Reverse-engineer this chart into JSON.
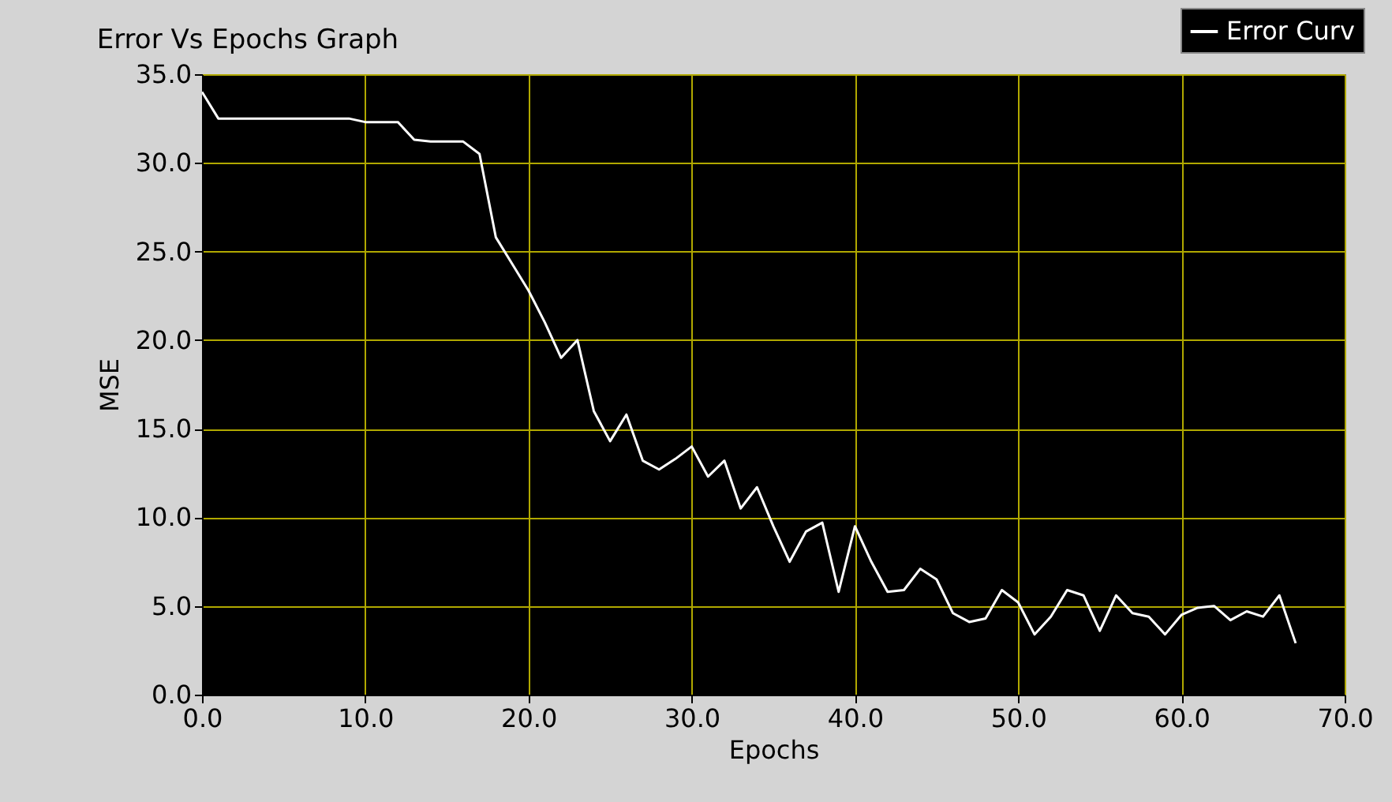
{
  "chart_data": {
    "type": "line",
    "title": "Error Vs Epochs Graph",
    "xlabel": "Epochs",
    "ylabel": "MSE",
    "x": [
      0,
      1,
      2,
      3,
      4,
      5,
      6,
      7,
      8,
      9,
      10,
      11,
      12,
      13,
      14,
      15,
      16,
      17,
      18,
      19,
      20,
      21,
      22,
      23,
      24,
      25,
      26,
      27,
      28,
      29,
      30,
      31,
      32,
      33,
      34,
      35,
      36,
      37,
      38,
      39,
      40,
      41,
      42,
      43,
      44,
      45,
      46,
      47,
      48,
      49,
      50,
      51,
      52,
      53,
      54,
      55,
      56,
      57,
      58,
      59,
      60,
      61,
      62,
      63,
      64,
      65,
      66,
      67
    ],
    "series": [
      {
        "name": "Error Curv",
        "color": "#ffffff",
        "values": [
          34,
          32.5,
          32.5,
          32.5,
          32.5,
          32.5,
          32.5,
          32.5,
          32.5,
          32.5,
          32.3,
          32.3,
          32.3,
          31.3,
          31.2,
          31.2,
          31.2,
          30.5,
          25.8,
          24.3,
          22.8,
          21,
          19,
          20,
          16,
          14.3,
          15.8,
          13.2,
          12.7,
          13.3,
          14,
          12.3,
          13.2,
          10.5,
          11.7,
          9.5,
          7.5,
          9.2,
          9.7,
          5.8,
          9.5,
          7.5,
          5.8,
          5.9,
          7.1,
          6.5,
          4.6,
          4.1,
          4.3,
          5.9,
          5.2,
          3.4,
          4.4,
          5.9,
          5.6,
          3.6,
          5.6,
          4.6,
          4.4,
          3.4,
          4.5,
          4.9,
          5,
          4.2,
          4.7,
          4.4,
          5.6,
          2.9
        ]
      }
    ],
    "xlim": [
      0,
      70
    ],
    "ylim": [
      0,
      35
    ],
    "xticks": [
      {
        "value": 0,
        "label": "0.0"
      },
      {
        "value": 10,
        "label": "10.0"
      },
      {
        "value": 20,
        "label": "20.0"
      },
      {
        "value": 30,
        "label": "30.0"
      },
      {
        "value": 40,
        "label": "40.0"
      },
      {
        "value": 50,
        "label": "50.0"
      },
      {
        "value": 60,
        "label": "60.0"
      },
      {
        "value": 70,
        "label": "70.0"
      }
    ],
    "yticks": [
      {
        "value": 0,
        "label": "0.0"
      },
      {
        "value": 5,
        "label": "5.0"
      },
      {
        "value": 10,
        "label": "10.0"
      },
      {
        "value": 15,
        "label": "15.0"
      },
      {
        "value": 20,
        "label": "20.0"
      },
      {
        "value": 25,
        "label": "25.0"
      },
      {
        "value": 30,
        "label": "30.0"
      },
      {
        "value": 35,
        "label": "35.0"
      }
    ],
    "grid": true,
    "legend": "top right",
    "marker": "none",
    "line_style": "solid"
  }
}
